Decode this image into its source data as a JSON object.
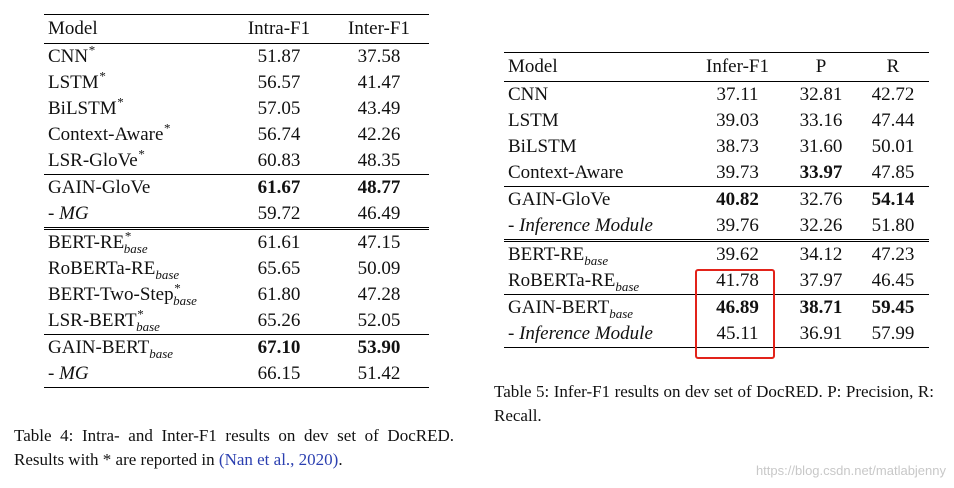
{
  "table4": {
    "headers": [
      "Model",
      "Intra-F1",
      "Inter-F1"
    ],
    "rows": [
      {
        "model": "CNN",
        "sup": "*",
        "sub": "",
        "c1": "51.87",
        "c2": "37.58"
      },
      {
        "model": "LSTM",
        "sup": "*",
        "sub": "",
        "c1": "56.57",
        "c2": "41.47"
      },
      {
        "model": "BiLSTM",
        "sup": "*",
        "sub": "",
        "c1": "57.05",
        "c2": "43.49"
      },
      {
        "model": "Context-Aware",
        "sup": "*",
        "sub": "",
        "c1": "56.74",
        "c2": "42.26"
      },
      {
        "model": "LSR-GloVe",
        "sup": "*",
        "sub": "",
        "c1": "60.83",
        "c2": "48.35"
      },
      {
        "model": "GAIN-GloVe",
        "sup": "",
        "sub": "",
        "c1": "61.67",
        "c2": "48.77"
      },
      {
        "model": "- MG",
        "sup": "",
        "sub": "",
        "c1": "59.72",
        "c2": "46.49"
      },
      {
        "model": "BERT-RE",
        "sup": "*",
        "sub": "base",
        "c1": "61.61",
        "c2": "47.15"
      },
      {
        "model": "RoBERTa-RE",
        "sup": "",
        "sub": "base",
        "c1": "65.65",
        "c2": "50.09"
      },
      {
        "model": "BERT-Two-Step",
        "sup": "*",
        "sub": "base",
        "c1": "61.80",
        "c2": "47.28"
      },
      {
        "model": "LSR-BERT",
        "sup": "*",
        "sub": "base",
        "c1": "65.26",
        "c2": "52.05"
      },
      {
        "model": "GAIN-BERT",
        "sup": "",
        "sub": "base",
        "c1": "67.10",
        "c2": "53.90"
      },
      {
        "model": "- MG",
        "sup": "",
        "sub": "",
        "c1": "66.15",
        "c2": "51.42"
      }
    ],
    "caption_part1": "Table 4: Intra- and Inter-F1 results on dev set of DocRED. Results with * are reported in ",
    "caption_cite": "(Nan et al., 2020)",
    "caption_part2": "."
  },
  "table5": {
    "headers": [
      "Model",
      "Infer-F1",
      "P",
      "R"
    ],
    "rows": [
      {
        "model": "CNN",
        "sub": "",
        "c1": "37.11",
        "c2": "32.81",
        "c3": "42.72"
      },
      {
        "model": "LSTM",
        "sub": "",
        "c1": "39.03",
        "c2": "33.16",
        "c3": "47.44"
      },
      {
        "model": "BiLSTM",
        "sub": "",
        "c1": "38.73",
        "c2": "31.60",
        "c3": "50.01"
      },
      {
        "model": "Context-Aware",
        "sub": "",
        "c1": "39.73",
        "c2": "33.97",
        "c3": "47.85"
      },
      {
        "model": "GAIN-GloVe",
        "sub": "",
        "c1": "40.82",
        "c2": "32.76",
        "c3": "54.14"
      },
      {
        "model": "- Inference Module",
        "sub": "",
        "c1": "39.76",
        "c2": "32.26",
        "c3": "51.80"
      },
      {
        "model": "BERT-RE",
        "sub": "base",
        "c1": "39.62",
        "c2": "34.12",
        "c3": "47.23"
      },
      {
        "model": "RoBERTa-RE",
        "sub": "base",
        "c1": "41.78",
        "c2": "37.97",
        "c3": "46.45"
      },
      {
        "model": "GAIN-BERT",
        "sub": "base",
        "c1": "46.89",
        "c2": "38.71",
        "c3": "59.45"
      },
      {
        "model": "- Inference Module",
        "sub": "",
        "c1": "45.11",
        "c2": "36.91",
        "c3": "57.99"
      }
    ],
    "caption": "Table 5: Infer-F1 results on dev set of DocRED. P: Precision, R: Recall."
  },
  "watermark": "https://blog.csdn.net/matlabjenny",
  "colors": {
    "highlight_box": "#e2231a",
    "citation": "#2b3fb0"
  }
}
